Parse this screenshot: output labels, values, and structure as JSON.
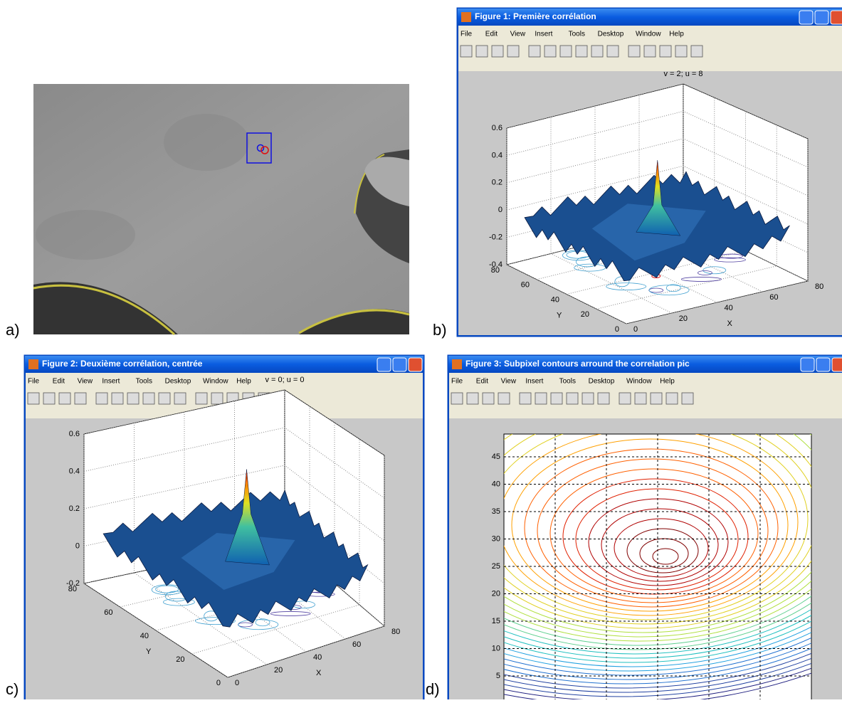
{
  "panel_labels": [
    "a)",
    "b)",
    "c)",
    "d)"
  ],
  "menu_items": [
    "File",
    "Edit",
    "View",
    "Insert",
    "Tools",
    "Desktop",
    "Window",
    "Help"
  ],
  "windows": [
    {
      "title": "Figure 1: Première corrélation",
      "plot_title": "v = 2; u = 8",
      "z_ticks": [
        "0.6",
        "0.4",
        "0.2",
        "0",
        "-0.2",
        "-0.4"
      ],
      "y_ticks": [
        "80",
        "60",
        "40",
        "20",
        "0"
      ],
      "x_ticks": [
        "0",
        "20",
        "40",
        "60",
        "80"
      ],
      "y_label": "Y",
      "x_label": "X"
    },
    {
      "title": "Figure 2: Deuxième corrélation, centrée",
      "plot_title": "v = 0; u = 0",
      "z_ticks": [
        "0.6",
        "0.4",
        "0.2",
        "0",
        "-0.2"
      ],
      "y_ticks": [
        "80",
        "60",
        "40",
        "20",
        "0"
      ],
      "x_ticks": [
        "0",
        "20",
        "40",
        "60",
        "80"
      ],
      "y_label": "Y",
      "x_label": "X"
    },
    {
      "title": "Figure 3: Subpixel contours arround the correlation pic",
      "y_ticks": [
        "45",
        "40",
        "35",
        "30",
        "25",
        "20",
        "15",
        "10",
        "5"
      ]
    }
  ]
}
